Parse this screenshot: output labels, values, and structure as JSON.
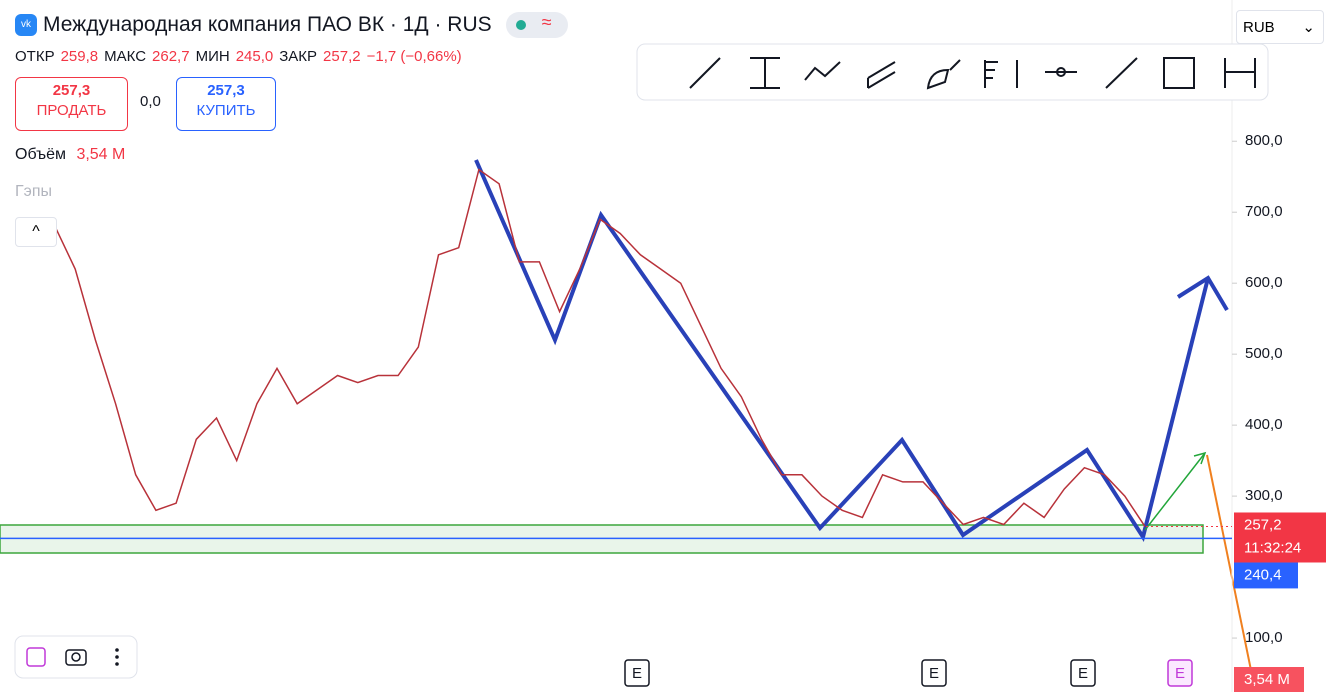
{
  "header": {
    "title": "Международная компания ПАО ВК · 1Д · RUS",
    "currency": "RUB",
    "ohlc": [
      {
        "label": "ОТКР",
        "value": "259,8"
      },
      {
        "label": "МАКС",
        "value": "262,7"
      },
      {
        "label": "МИН",
        "value": "245,0"
      },
      {
        "label": "ЗАКР",
        "value": "257,2"
      }
    ],
    "change": "−1,7 (−0,66%)",
    "sell": {
      "price": "257,3",
      "label": "ПРОДАТЬ"
    },
    "spread": "0,0",
    "buy": {
      "price": "257,3",
      "label": "КУПИТЬ"
    },
    "volume": {
      "label": "Объём",
      "value": "3,54 M"
    },
    "gaps": "Гэпы"
  },
  "events": [
    "E",
    "E",
    "E",
    "E"
  ],
  "chart_data": {
    "type": "line",
    "color": "#b8323a",
    "values": [
      680,
      620,
      520,
      430,
      330,
      280,
      290,
      380,
      410,
      350,
      430,
      480,
      430,
      450,
      470,
      460,
      470,
      470,
      510,
      640,
      650,
      760,
      740,
      630,
      630,
      560,
      620,
      690,
      670,
      640,
      620,
      600,
      540,
      480,
      440,
      380,
      330,
      330,
      300,
      280,
      270,
      330,
      320,
      320,
      290,
      260,
      270,
      260,
      290,
      270,
      310,
      340,
      330,
      300,
      257.2
    ],
    "ylim": [
      24,
      999
    ],
    "yticks": [
      {
        "value": 100,
        "label": "100,0"
      },
      {
        "value": 300,
        "label": "300,0"
      },
      {
        "value": 400,
        "label": "400,0"
      },
      {
        "value": 500,
        "label": "500,0"
      },
      {
        "value": 600,
        "label": "600,0"
      },
      {
        "value": 700,
        "label": "700,0"
      },
      {
        "value": 800,
        "label": "800,0"
      }
    ],
    "last_price": {
      "value": 257.2,
      "label": "257,2"
    },
    "countdown": "11:32:24",
    "level": {
      "value": 240.4,
      "label": "240,4"
    },
    "volume_label": "3,54 M"
  }
}
